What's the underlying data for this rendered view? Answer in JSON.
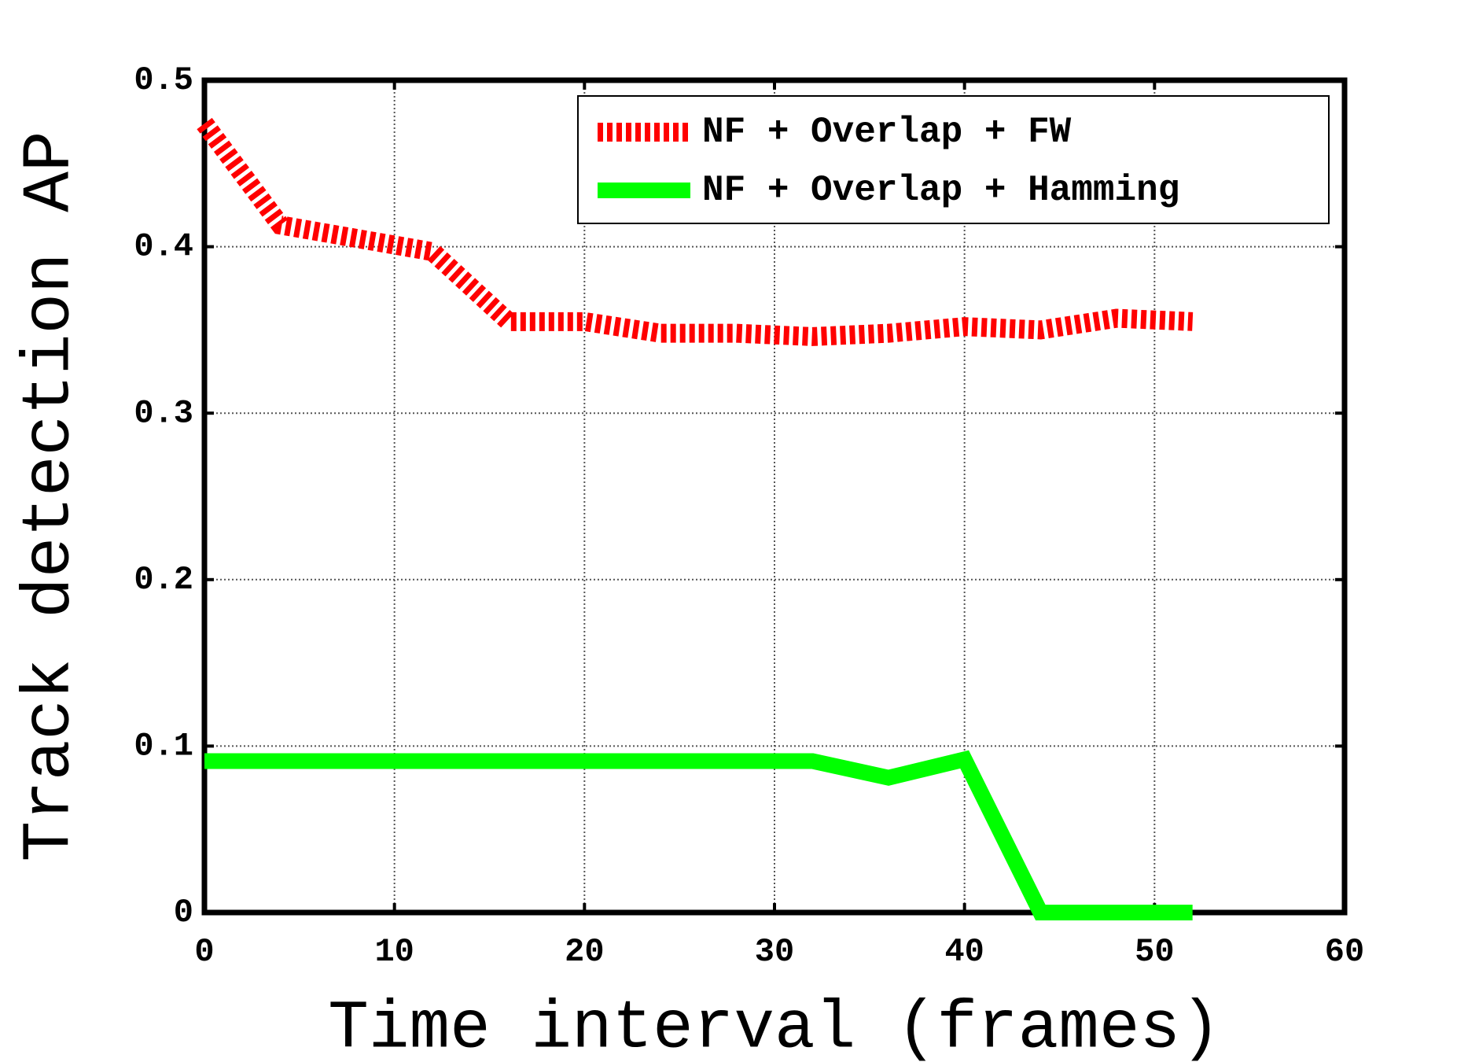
{
  "chart_data": {
    "type": "line",
    "xlabel": "Time interval (frames)",
    "ylabel": "Track detection AP",
    "x": [
      0,
      4,
      8,
      12,
      16,
      20,
      24,
      28,
      32,
      36,
      40,
      44,
      48,
      52
    ],
    "series": [
      {
        "name": "NF + Overlap + FW",
        "color": "#ff0000",
        "style": "dashed",
        "values": [
          0.474,
          0.413,
          0.405,
          0.397,
          0.355,
          0.355,
          0.348,
          0.348,
          0.346,
          0.348,
          0.352,
          0.35,
          0.357,
          0.355
        ]
      },
      {
        "name": "NF + Overlap + Hamming",
        "color": "#00ff00",
        "style": "solid",
        "values": [
          0.091,
          0.091,
          0.091,
          0.091,
          0.091,
          0.091,
          0.091,
          0.091,
          0.091,
          0.081,
          0.092,
          0.0,
          0.0,
          0.0
        ]
      }
    ],
    "xlim": [
      0,
      60
    ],
    "xticks": [
      0,
      10,
      20,
      30,
      40,
      50,
      60
    ],
    "ylim": [
      0,
      0.5
    ],
    "yticks": [
      0,
      0.1,
      0.2,
      0.3,
      0.4,
      0.5
    ],
    "grid": true,
    "legend": "upper right"
  }
}
